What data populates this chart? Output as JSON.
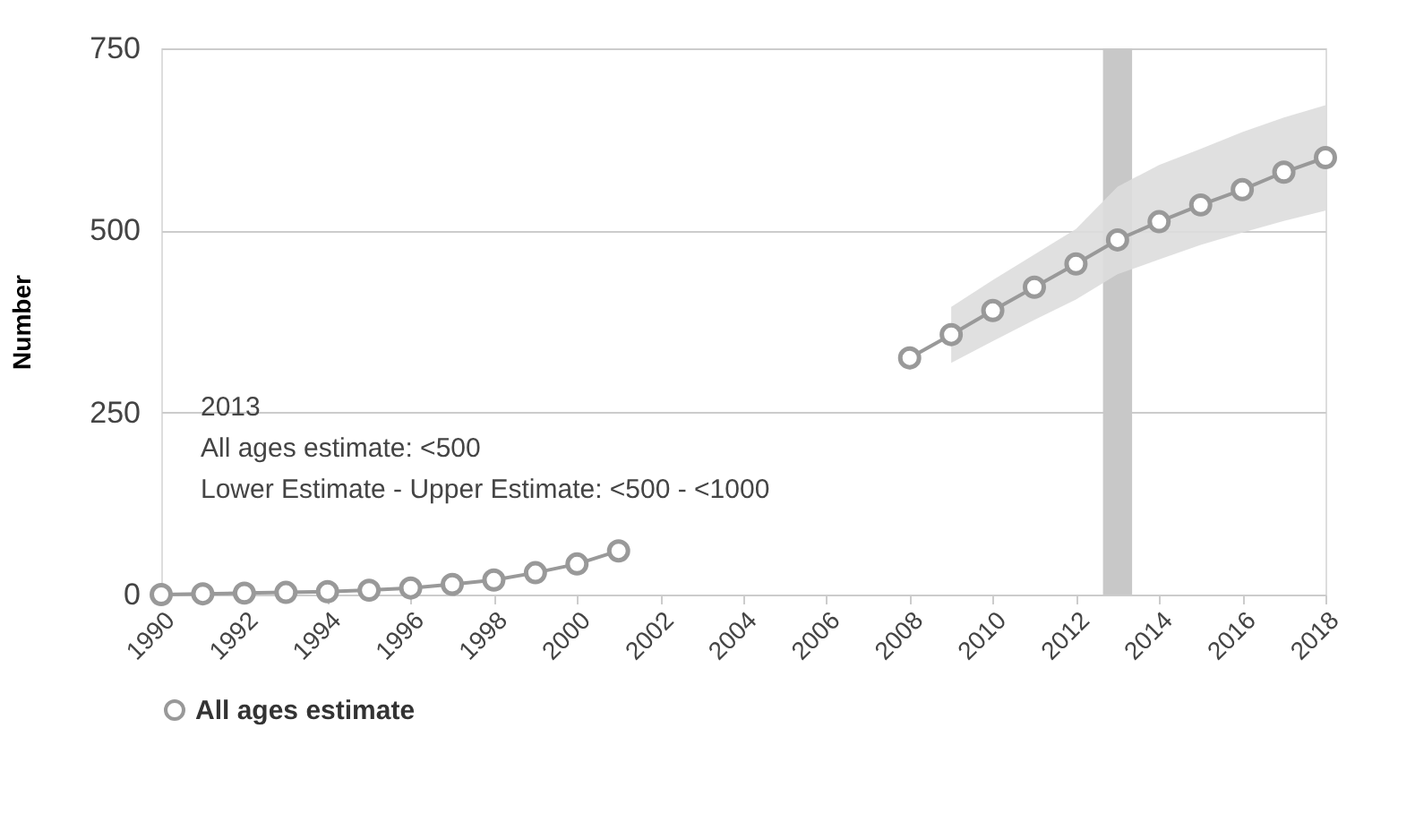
{
  "chart_data": {
    "type": "line",
    "ylabel": "Number",
    "x": [
      1990,
      1991,
      1992,
      1993,
      1994,
      1995,
      1996,
      1997,
      1998,
      1999,
      2000,
      2001,
      2002,
      2003,
      2004,
      2005,
      2006,
      2007,
      2008,
      2009,
      2010,
      2011,
      2012,
      2013,
      2014,
      2015,
      2016,
      2017,
      2018
    ],
    "series": [
      {
        "name": "All ages estimate",
        "color": "#999999",
        "values": [
          0,
          1,
          2,
          3,
          4,
          6,
          9,
          14,
          20,
          30,
          42,
          60,
          null,
          null,
          null,
          null,
          null,
          null,
          325,
          357,
          390,
          422,
          454,
          487,
          512,
          535,
          556,
          580,
          600
        ],
        "lower": [
          null,
          null,
          null,
          null,
          null,
          null,
          null,
          null,
          null,
          null,
          null,
          null,
          null,
          null,
          null,
          null,
          null,
          null,
          null,
          318,
          348,
          377,
          405,
          440,
          460,
          480,
          497,
          513,
          527
        ],
        "upper": [
          null,
          null,
          null,
          null,
          null,
          null,
          null,
          null,
          null,
          null,
          null,
          null,
          null,
          null,
          null,
          null,
          null,
          null,
          null,
          395,
          432,
          467,
          502,
          560,
          590,
          612,
          635,
          655,
          672
        ]
      }
    ],
    "xlim": [
      1990,
      2018
    ],
    "xticks": [
      1990,
      1992,
      1994,
      1996,
      1998,
      2000,
      2002,
      2004,
      2006,
      2008,
      2010,
      2012,
      2014,
      2016,
      2018
    ],
    "ylim": [
      0,
      750
    ],
    "yticks": [
      0,
      250,
      500,
      750
    ],
    "grid": "y",
    "legend": "bottom",
    "marker": "circle",
    "line_style": "solid",
    "bands": [
      {
        "axis": "x",
        "from": 2012.65,
        "to": 2013.35,
        "color": "#c8c8c8"
      }
    ],
    "annotations": [
      "2013",
      "All ages estimate: <500",
      "Lower Estimate - Upper Estimate: <500 - <1000"
    ]
  }
}
